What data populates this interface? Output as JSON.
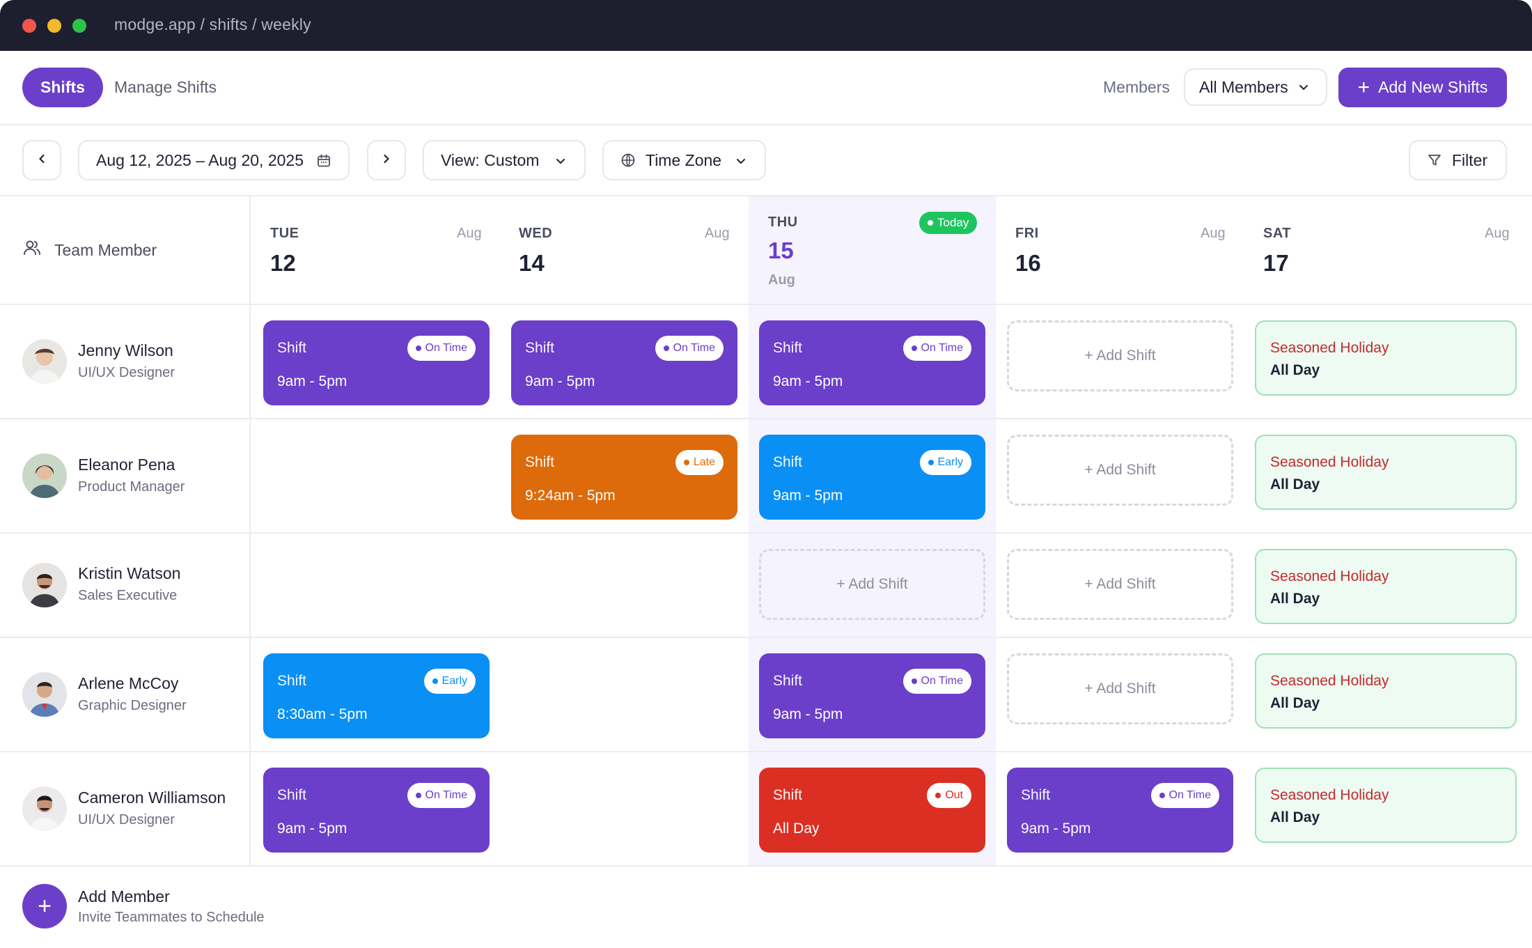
{
  "window": {
    "url": "modge.app / shifts / weekly"
  },
  "header": {
    "tab_active": "Shifts",
    "tab_other": "Manage Shifts",
    "members_label": "Members",
    "members_select": "All Members",
    "add_button": "Add New Shifts"
  },
  "toolbar": {
    "date_range": "Aug 12, 2025 – Aug 20, 2025",
    "view": "View: Custom",
    "timezone": "Time Zone",
    "filter": "Filter"
  },
  "grid": {
    "member_header": "Team Member",
    "days": [
      {
        "name": "TUE",
        "num": "12",
        "month": "Aug"
      },
      {
        "name": "WED",
        "num": "14",
        "month": "Aug"
      },
      {
        "name": "THU",
        "num": "15",
        "month": "Aug",
        "badge": "Today"
      },
      {
        "name": "FRI",
        "num": "16",
        "month": "Aug"
      },
      {
        "name": "SAT",
        "num": "17",
        "month": "Aug"
      }
    ],
    "members": [
      {
        "name": "Jenny Wilson",
        "role": "UI/UX Designer"
      },
      {
        "name": "Eleanor Pena",
        "role": "Product Manager"
      },
      {
        "name": "Kristin Watson",
        "role": "Sales Executive"
      },
      {
        "name": "Arlene McCoy",
        "role": "Graphic Designer"
      },
      {
        "name": "Cameron Williamson",
        "role": "UI/UX Designer"
      }
    ],
    "shift_label": "Shift",
    "add_shift": "+ Add Shift",
    "holiday": {
      "title": "Seasoned Holiday",
      "sub": "All Day"
    },
    "statuses": {
      "on_time": "On Time",
      "late": "Late",
      "early": "Early",
      "out": "Out"
    },
    "times": {
      "standard": "9am - 5pm",
      "late": "9:24am - 5pm",
      "early": "8:30am - 5pm",
      "all_day": "All Day"
    }
  },
  "footer": {
    "title": "Add Member",
    "subtitle": "Invite Teammates to Schedule"
  },
  "colors": {
    "accent": "#6b3fc9",
    "on_time": "#6b3fc9",
    "late": "#dd6a0b",
    "early": "#0a8ff5",
    "out": "#db2f23",
    "today": "#1fc45e"
  }
}
